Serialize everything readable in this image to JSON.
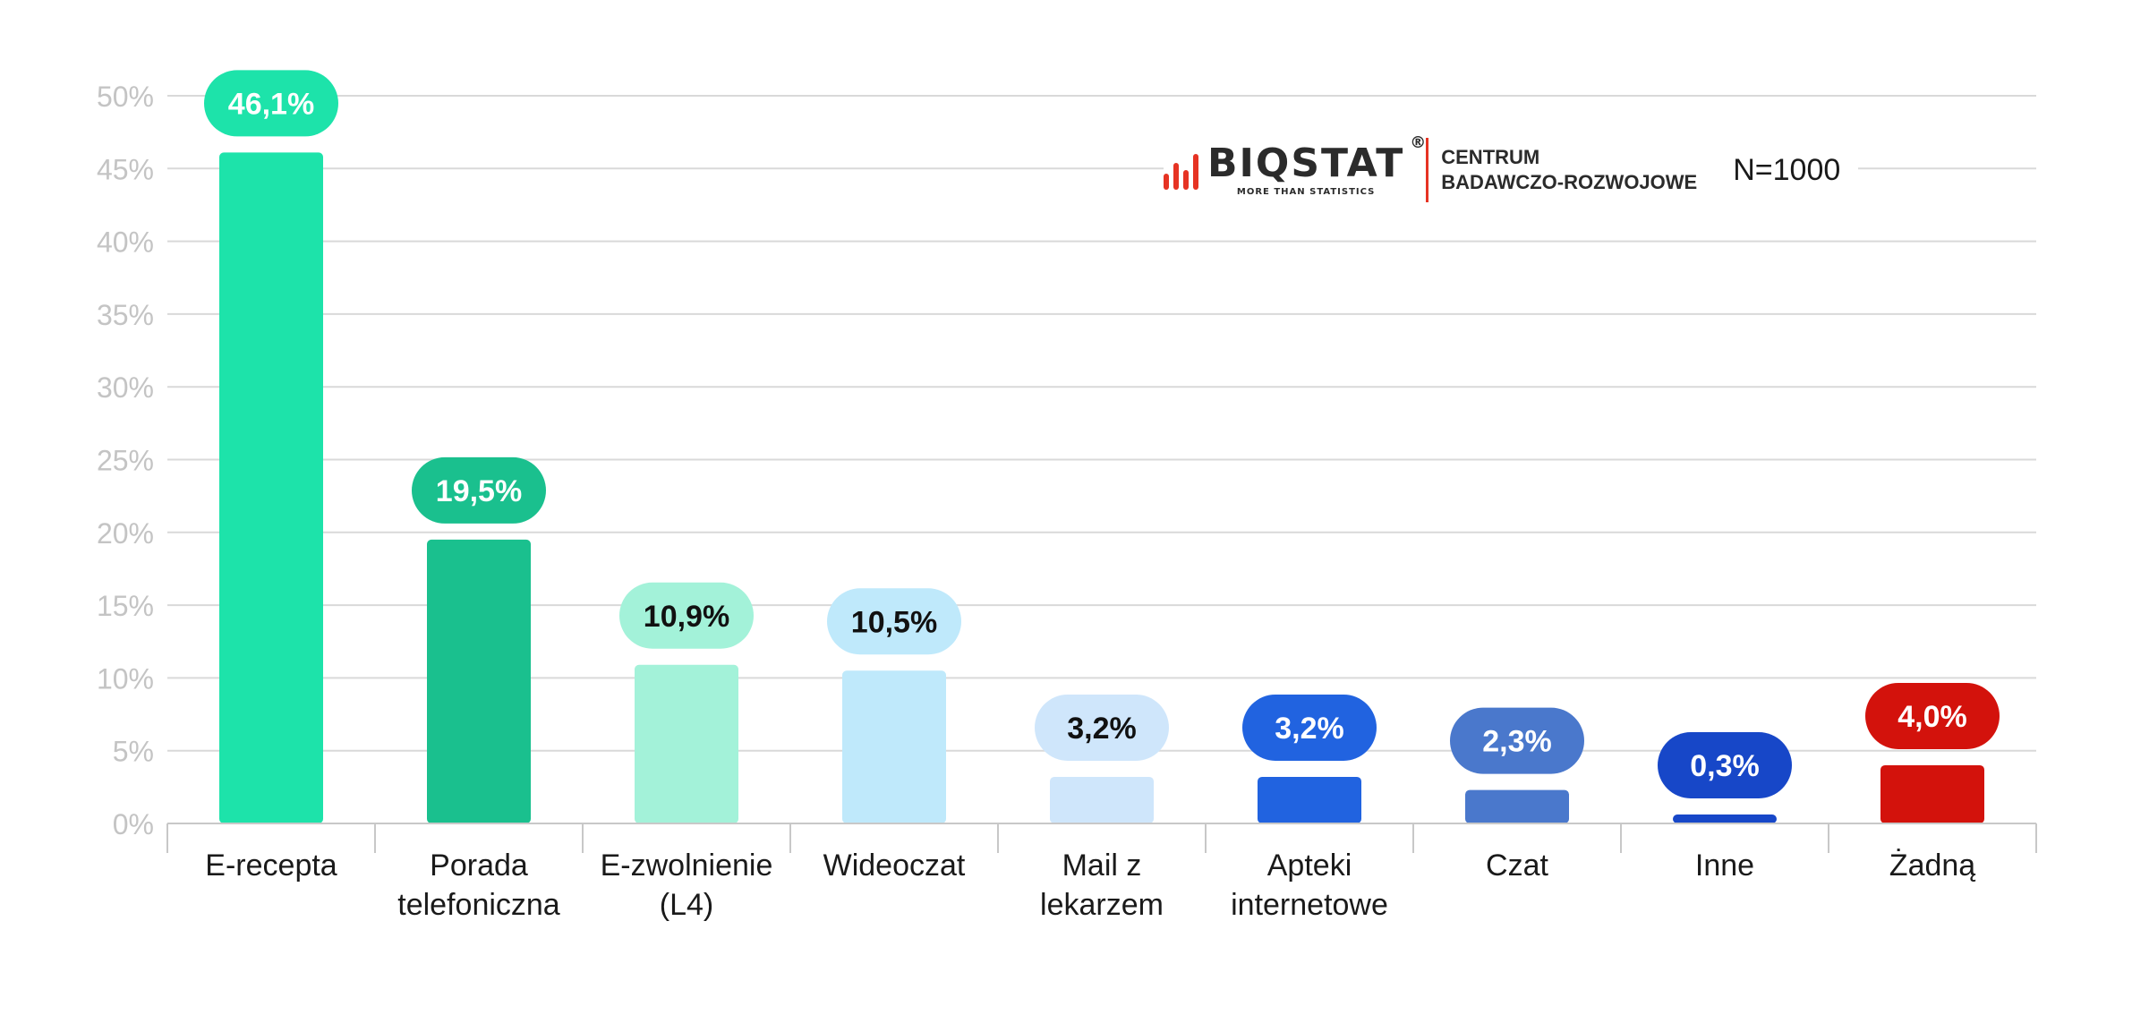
{
  "chart_data": {
    "type": "bar",
    "title": "",
    "xlabel": "",
    "ylabel": "",
    "ylim": [
      0,
      50
    ],
    "yticks": [
      "0%",
      "5%",
      "10%",
      "15%",
      "20%",
      "25%",
      "30%",
      "35%",
      "40%",
      "45%",
      "50%"
    ],
    "grid": true,
    "categories": [
      [
        "E-recepta"
      ],
      [
        "Porada",
        "telefoniczna"
      ],
      [
        "E-zwolnienie",
        "(L4)"
      ],
      [
        "Wideoczat"
      ],
      [
        "Mail z",
        "lekarzem"
      ],
      [
        "Apteki",
        "internetowe"
      ],
      [
        "Czat"
      ],
      [
        "Inne"
      ],
      [
        "Żadną"
      ]
    ],
    "values": [
      46.1,
      19.5,
      10.9,
      10.5,
      3.2,
      3.2,
      2.3,
      0.3,
      4.0
    ],
    "value_labels": [
      "46,1%",
      "19,5%",
      "10,9%",
      "10,5%",
      "3,2%",
      "3,2%",
      "2,3%",
      "0,3%",
      "4,0%"
    ],
    "colors": [
      "#1de3aa",
      "#1ac08e",
      "#a3f2d9",
      "#bfe9fb",
      "#cfe6fb",
      "#2163e0",
      "#4a78cc",
      "#1747c8",
      "#d3120c"
    ],
    "label_colors": [
      "#ffffff",
      "#ffffff",
      "#111111",
      "#111111",
      "#111111",
      "#ffffff",
      "#ffffff",
      "#ffffff",
      "#ffffff"
    ]
  },
  "logo": {
    "name": "BIQSTAT",
    "registered": "®",
    "tagline": "MORE THAN STATISTICS",
    "org_line1": "CENTRUM",
    "org_line2": "BADAWCZO-ROZWOJOWE"
  },
  "sample_size": "N=1000"
}
